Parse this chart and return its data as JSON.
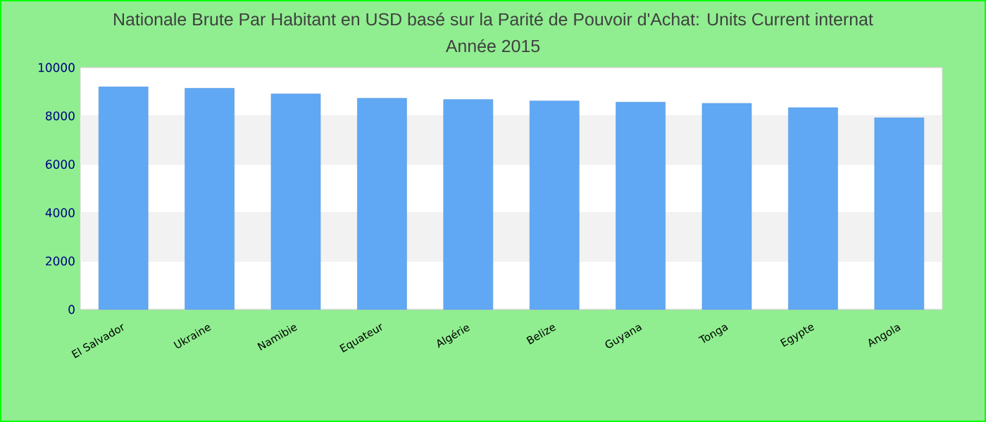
{
  "chart_data": {
    "type": "bar",
    "title": "Nationale Brute Par Habitant en USD basé sur la Parité de Pouvoir d'Achat: Units Current internat",
    "subtitle": "Année 2015",
    "categories": [
      "El Salvador",
      "Ukraine",
      "Namibie",
      "Equateur",
      "Algérie",
      "Belize",
      "Guyana",
      "Tonga",
      "Egypte",
      "Angola"
    ],
    "values": [
      9200,
      9140,
      8910,
      8730,
      8680,
      8620,
      8570,
      8520,
      8340,
      7920
    ],
    "color": "#60a8f4",
    "ylim": [
      0,
      10000
    ],
    "yticks": [
      0,
      2000,
      4000,
      6000,
      8000,
      10000
    ],
    "grid": "y"
  }
}
